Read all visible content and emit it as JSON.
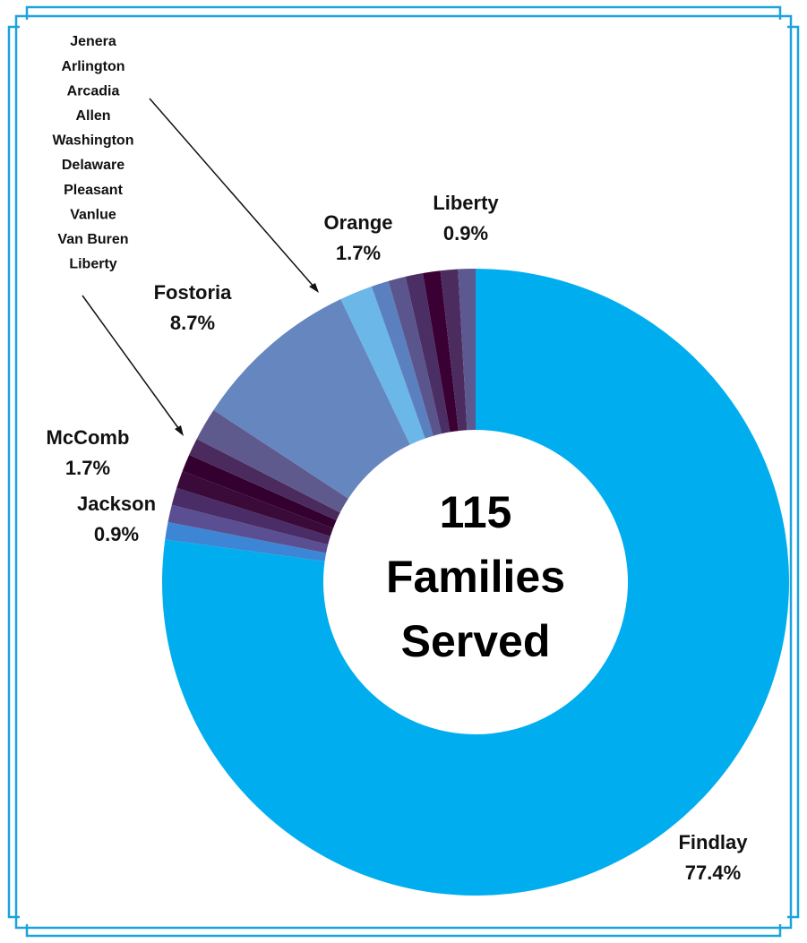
{
  "chart_data": {
    "type": "donut",
    "center_text": [
      "115",
      "Families",
      "Served"
    ],
    "categories": [
      "Findlay",
      "Jackson",
      "Delaware",
      "Pleasant",
      "Vanlue",
      "Van Buren",
      "Liberty",
      "McComb",
      "Fostoria",
      "Orange",
      "Jenera",
      "Arlington",
      "Arcadia",
      "Allen",
      "Washington",
      "Liberty"
    ],
    "values": [
      77.4,
      0.9,
      0.9,
      0.9,
      0.9,
      0.9,
      0.9,
      1.7,
      8.7,
      1.7,
      0.9,
      0.9,
      0.9,
      0.9,
      0.9,
      0.9
    ],
    "value_labels": [
      "77.4%",
      "0.9%",
      null,
      null,
      null,
      null,
      null,
      "1.7%",
      "8.7%",
      "1.7%",
      null,
      null,
      null,
      null,
      null,
      "0.9%"
    ],
    "colors": [
      "#00aeef",
      "#3d86d6",
      "#5a4f92",
      "#4a2c66",
      "#3a0a38",
      "#330030",
      "#4b2a5e",
      "#5f5a8e",
      "#6686c0",
      "#6bb7e8",
      "#5b80bf",
      "#5a558c",
      "#4a2e64",
      "#3a0033",
      "#4c2c5e",
      "#5c5890"
    ]
  }
}
